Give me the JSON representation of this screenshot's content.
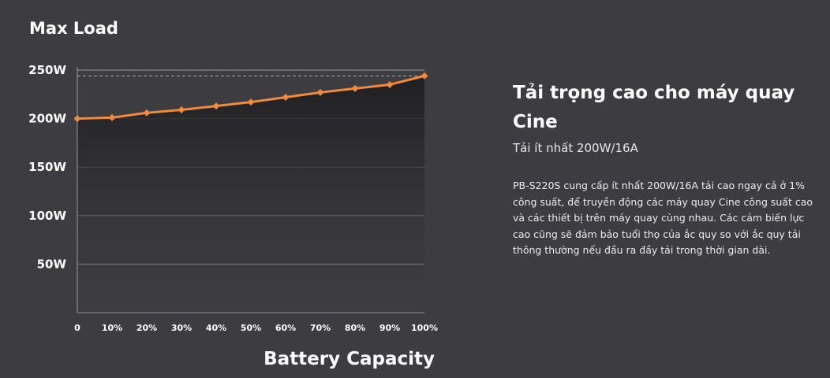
{
  "chart_data": {
    "type": "area",
    "title": "Max Load",
    "xlabel": "Battery Capacity",
    "ylabel": "",
    "categories": [
      "0",
      "10%",
      "20%",
      "30%",
      "40%",
      "50%",
      "60%",
      "70%",
      "80%",
      "90%",
      "100%"
    ],
    "values": [
      200,
      201,
      206,
      209,
      213,
      217,
      222,
      227,
      231,
      235,
      244
    ],
    "yticks": [
      "250W",
      "200W",
      "150W",
      "100W",
      "50W"
    ],
    "ytick_values": [
      250,
      200,
      150,
      100,
      50
    ],
    "ylim": [
      0,
      250
    ],
    "reference_line": 244,
    "grid": true,
    "colors": {
      "line": "#f08a3c",
      "marker": "#f08a3c",
      "grid": "#9a9aa0",
      "reference": "#a9a9ae",
      "fill_top": "#1f1f22",
      "fill_bottom": "#3c3c41"
    }
  },
  "info": {
    "heading": "Tải trọng cao cho máy quay Cine",
    "subheading": "Tải ít nhất 200W/16A",
    "description": "PB-S220S cung cấp ít nhất 200W/16A tải cao ngay cả ở 1% công suất, để truyền động các máy quay Cine công suất cao và các thiết bị trên máy quay cùng nhau. Các cảm biến lực cao cũng sẽ đảm bảo tuổi thọ của ắc quy so với ắc quy tải thông thường nếu đầu ra đầy tải trong thời gian dài."
  }
}
